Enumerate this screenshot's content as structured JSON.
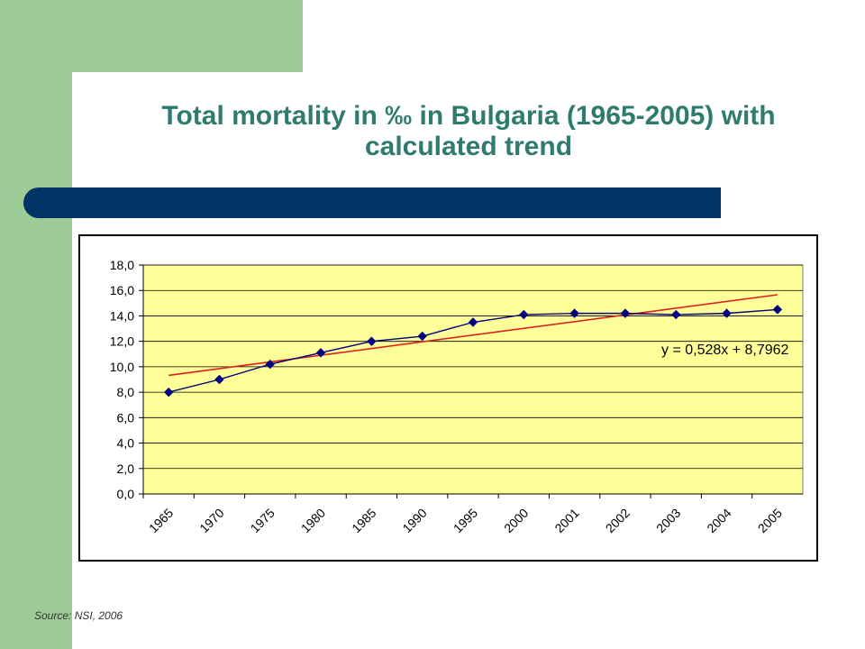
{
  "slide": {
    "title_line1": "Total mortality in ‰ in Bulgaria (1965-2005) with",
    "title_line2": "calculated trend",
    "source": "Source: NSI, 2006",
    "colors": {
      "green_accent": "#9dcb95",
      "title": "#2f7b6e",
      "navy_bar": "#003366"
    }
  },
  "chart_data": {
    "type": "line",
    "categories": [
      "1965",
      "1970",
      "1975",
      "1980",
      "1985",
      "1990",
      "1995",
      "2000",
      "2001",
      "2002",
      "2003",
      "2004",
      "2005"
    ],
    "series": [
      {
        "values": [
          8.0,
          9.0,
          10.2,
          11.1,
          12.0,
          12.4,
          13.5,
          14.1,
          14.2,
          14.2,
          14.1,
          14.2,
          14.5
        ],
        "color": "#000080",
        "marker": "diamond"
      }
    ],
    "trend": {
      "equation": "y = 0,528x + 8,7962",
      "slope": 0.528,
      "intercept": 8.7962,
      "color": "#e02020"
    },
    "ylim": [
      0,
      18
    ],
    "yticks": [
      "0,0",
      "2,0",
      "4,0",
      "6,0",
      "8,0",
      "10,0",
      "12,0",
      "14,0",
      "16,0",
      "18,0"
    ],
    "plot_background": "#ffff99",
    "grid": true,
    "legend": "none"
  }
}
